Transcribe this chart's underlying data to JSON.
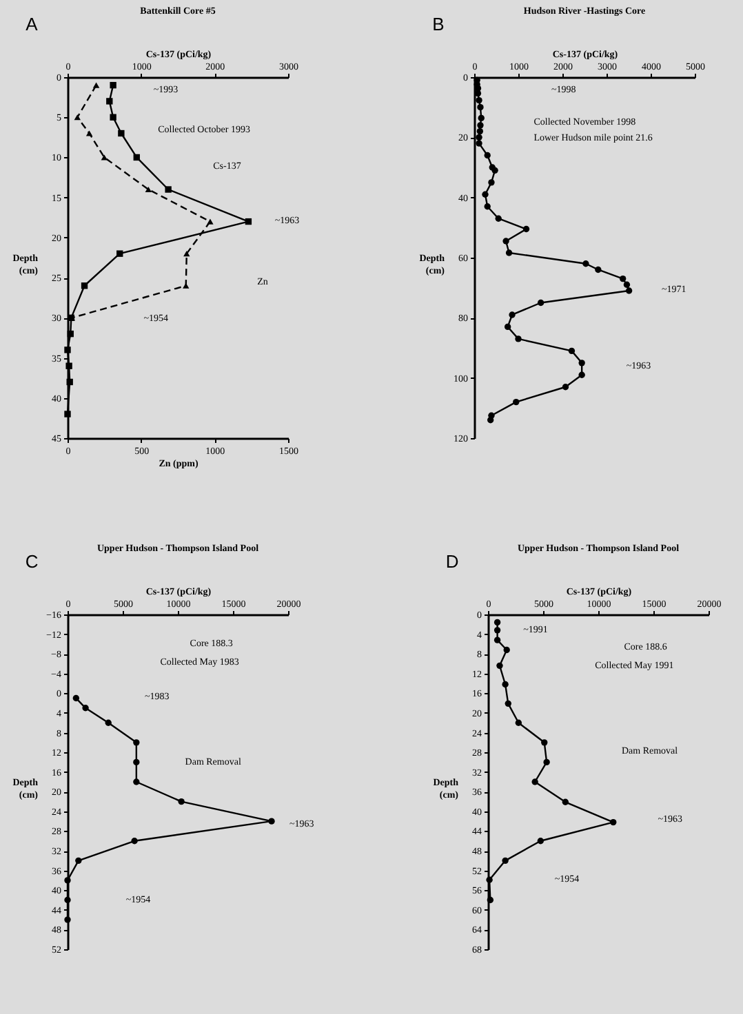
{
  "chart_data": [
    {
      "type": "line",
      "title": "Battenkill Core #5",
      "x2label": "Cs-137 (pCi/kg)",
      "xlabel": "Zn (ppm)",
      "ylabel": "Depth (cm)",
      "xlim": [
        0,
        1500
      ],
      "xticks": [
        0,
        500,
        1000,
        1500
      ],
      "x2lim": [
        0,
        3000
      ],
      "x2ticks": [
        0,
        1000,
        2000,
        3000
      ],
      "ylim": [
        45,
        0
      ],
      "yticks": [
        0,
        5,
        10,
        15,
        20,
        25,
        30,
        35,
        40,
        45
      ],
      "series": [
        {
          "axis": "x2",
          "color": "#000000",
          "marker": "square",
          "line_style": "solid",
          "x": [
            620,
            570,
            620,
            730,
            940,
            1370,
            2460,
            710,
            230,
            50,
            40,
            0,
            20,
            30,
            0
          ],
          "values": [
            1,
            3,
            5,
            7,
            10,
            14,
            18,
            22,
            26,
            30,
            32,
            34,
            36,
            38,
            42
          ]
        },
        {
          "color": "#000000",
          "marker": "triangle",
          "line_style": "dashed",
          "x": [
            195,
            67,
            148,
            250,
            550,
            970,
            810,
            805,
            30
          ],
          "values": [
            1,
            5,
            7,
            10,
            14,
            18,
            22,
            26,
            30
          ]
        }
      ],
      "annotations": [
        "A",
        "~1993",
        "Collected October 1993",
        "Cs-137",
        "~1963",
        "Zn",
        "~1954"
      ]
    },
    {
      "type": "line",
      "title": "Hudson River -Hastings Core",
      "xlabel": "Cs-137 (pCi/kg)",
      "ylabel": "Depth (cm)",
      "xlim": [
        0,
        5000
      ],
      "xticks": [
        0,
        1000,
        2000,
        3000,
        4000,
        5000
      ],
      "ylim": [
        120,
        0
      ],
      "yticks": [
        0,
        20,
        40,
        60,
        80,
        100,
        120
      ],
      "marker": "circle",
      "series": [
        {
          "color": "#000000",
          "x": [
            65,
            65,
            85,
            85,
            110,
            140,
            160,
            140,
            130,
            110,
            110,
            300,
            410,
            470,
            390,
            250,
            300,
            550,
            1180,
            720,
            790,
            2530,
            2810,
            3370,
            3460,
            3510,
            1510,
            860,
            760,
            1000,
            2210,
            2440,
            2440,
            2070,
            950,
            390,
            370
          ],
          "values": [
            1,
            2.4,
            3.7,
            5.4,
            7.7,
            10,
            13.6,
            16,
            18,
            20,
            22,
            26,
            30,
            31,
            35,
            39,
            43,
            47,
            50.5,
            54.5,
            58.4,
            62,
            64,
            67,
            69,
            71,
            75,
            79,
            83,
            87,
            91,
            95,
            99,
            103,
            108,
            112.5,
            114
          ]
        }
      ],
      "annotations": [
        "B",
        "~1998",
        "Collected November 1998",
        "Lower Hudson mile point 21.6",
        "~1971",
        "~1963"
      ]
    },
    {
      "type": "line",
      "title": "Upper Hudson - Thompson Island Pool",
      "xlabel": "Cs-137 (pCi/kg)",
      "ylabel": "Depth (cm)",
      "xlim": [
        0,
        20000
      ],
      "xticks": [
        0,
        5000,
        10000,
        15000,
        20000
      ],
      "ylim": [
        52,
        -16
      ],
      "yticks": [
        -16,
        -12,
        -8,
        -4,
        0,
        4,
        8,
        12,
        16,
        20,
        24,
        28,
        32,
        36,
        40,
        44,
        48,
        52
      ],
      "marker": "circle",
      "series": [
        {
          "color": "#000000",
          "x": [
            770,
            1630,
            3700,
            6240,
            6240,
            6240,
            10320,
            18500,
            6070,
            990,
            0,
            0,
            0
          ],
          "values": [
            1,
            3,
            6,
            10,
            14,
            18,
            22,
            26,
            30,
            34,
            38,
            42,
            46
          ]
        }
      ],
      "annotations": [
        "C",
        "Core 188.3",
        "Collected May 1983",
        "~1983",
        "Dam Removal",
        "~1963",
        "~1954"
      ]
    },
    {
      "type": "line",
      "title": "Upper Hudson - Thompson Island Pool",
      "xlabel": "Cs-137 (pCi/kg)",
      "ylabel": "Depth (cm)",
      "xlim": [
        0,
        20000
      ],
      "xticks": [
        0,
        5000,
        10000,
        15000,
        20000
      ],
      "ylim": [
        68,
        0
      ],
      "yticks": [
        0,
        4,
        8,
        12,
        16,
        20,
        24,
        28,
        32,
        36,
        40,
        44,
        48,
        52,
        56,
        60,
        64,
        68
      ],
      "marker": "circle",
      "series": [
        {
          "color": "#000000",
          "x": [
            850,
            850,
            850,
            1700,
            1060,
            1570,
            1830,
            2770,
            5110,
            5320,
            4260,
            7020,
            11360,
            4770,
            1570,
            130,
            210
          ],
          "values": [
            1.6,
            3.2,
            5.2,
            7.2,
            10.4,
            14.2,
            18.1,
            22,
            26,
            30,
            34,
            38.1,
            42.2,
            46,
            50,
            53.9,
            58
          ]
        }
      ],
      "annotations": [
        "D",
        "~1991",
        "Core 188.6",
        "Collected May 1991",
        "Dam Removal",
        "~1963",
        "~1954"
      ]
    }
  ]
}
